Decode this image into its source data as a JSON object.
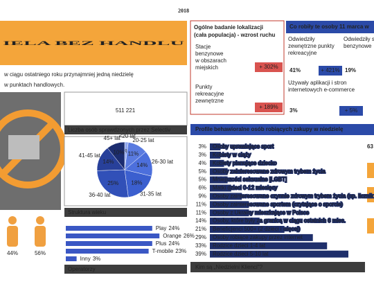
{
  "header": {
    "year": "2018",
    "title": "IELA BEZ HANDLU",
    "subtitle": [
      "w ciągu ostatniego roku przynajmniej jedną niedzielę",
      "w punktach handlowych."
    ]
  },
  "summary": {
    "count": "511 221",
    "caption": "Liczba osób sprawdzonych przez Selectiv"
  },
  "gender": {
    "labels": [
      "44%",
      "56%"
    ]
  },
  "location": {
    "title": [
      "Ogólne badanie lokalizacji",
      "(cała populacja) - wzrost ruchu"
    ],
    "items": [
      {
        "label": [
          "Stacje",
          "benzynowe",
          "w obszarach",
          "miejskich"
        ],
        "change": "+ 302%"
      },
      {
        "label": [
          "Punkty",
          "rekreacyjne",
          "zewnętrzne"
        ],
        "change": "+ 189%"
      }
    ]
  },
  "activities": {
    "title": "Co robiły te osoby 11 marca w",
    "items": [
      {
        "label": [
          "Odwiedziły",
          "zewnętrzne punkty",
          "rekreacyjne"
        ],
        "share": "41%",
        "change": "+ 421%"
      },
      {
        "label": [
          "Odwiedziły s",
          "benzynowe"
        ],
        "share": "19%"
      },
      {
        "label": [
          "Używały aplikacji i stron",
          "internetowych e-commerce"
        ],
        "share": "3%",
        "change": "+ 5%"
      }
    ]
  },
  "panels": {
    "age": "Struktura wieku",
    "operators": "Operatorzy",
    "profile": "Profile behawioralne osób robiących zakupy w niedzielę",
    "who": "Kim są „Niedzielni Klienci\"?"
  },
  "fragments": [
    "63"
  ],
  "chart_data": [
    {
      "type": "pie",
      "categories": [
        "<20 lat",
        "20-25 lat",
        "26-30 lat",
        "31-35 lat",
        "36-40 lat",
        "41-45 lat",
        "45+ lat"
      ],
      "values": [
        2,
        11,
        14,
        18,
        25,
        14,
        10
      ],
      "value_labels": [
        "2%",
        "11%",
        "14%",
        "18%",
        "25%",
        "14%",
        "10%"
      ],
      "colors": [
        "#8fa6ee",
        "#5a7be0",
        "#4c6fdc",
        "#3b5fcf",
        "#3150b8",
        "#28409a",
        "#1c2d70"
      ]
    },
    {
      "type": "bar",
      "categories": [
        "Play",
        "Orange",
        "Plus",
        "T-mobile",
        "Inny"
      ],
      "values": [
        24,
        26,
        24,
        23,
        3
      ],
      "value_labels": [
        "24%",
        "26%",
        "24%",
        "23%",
        "3%"
      ],
      "color": "#3a57c4"
    },
    {
      "type": "bar",
      "categories": [
        "Osoby uprawiające sport",
        "Kobiety w ciąży",
        "Kobiety planujące dziecko",
        "Osoby zainteresowane zdrowym trybem życia",
        "Mniejszości seksualne [LGBT]",
        "Matki dzieci 0-12 miesięcy",
        "Osoby zainteresowane czynnie zdrowym trybem życia (np. licznik kalorii)",
        "Osoby zainteresowane sportem (czytające o sporcie)",
        "Osoby z Ukrainy mieszkające w Polsce",
        "Osoby, które były za granicą w ciągu ostatnich 6 mies.",
        "Beneficjenci 500+ (2 dzieci i więcej)",
        "Osoby robiące zakupy przez internet",
        "Rodzice dzieci 1-4 lat",
        "Rodzice dzieci 5-10 lat"
      ],
      "values": [
        3,
        3,
        4,
        5,
        5,
        6,
        9,
        11,
        11,
        14,
        21,
        29,
        33,
        39
      ],
      "value_labels": [
        "3%",
        "3%",
        "4%",
        "5%",
        "5%",
        "6%",
        "9%",
        "11%",
        "11%",
        "14%",
        "21%",
        "29%",
        "33%",
        "39%"
      ],
      "color": "#1f2f6b"
    }
  ]
}
